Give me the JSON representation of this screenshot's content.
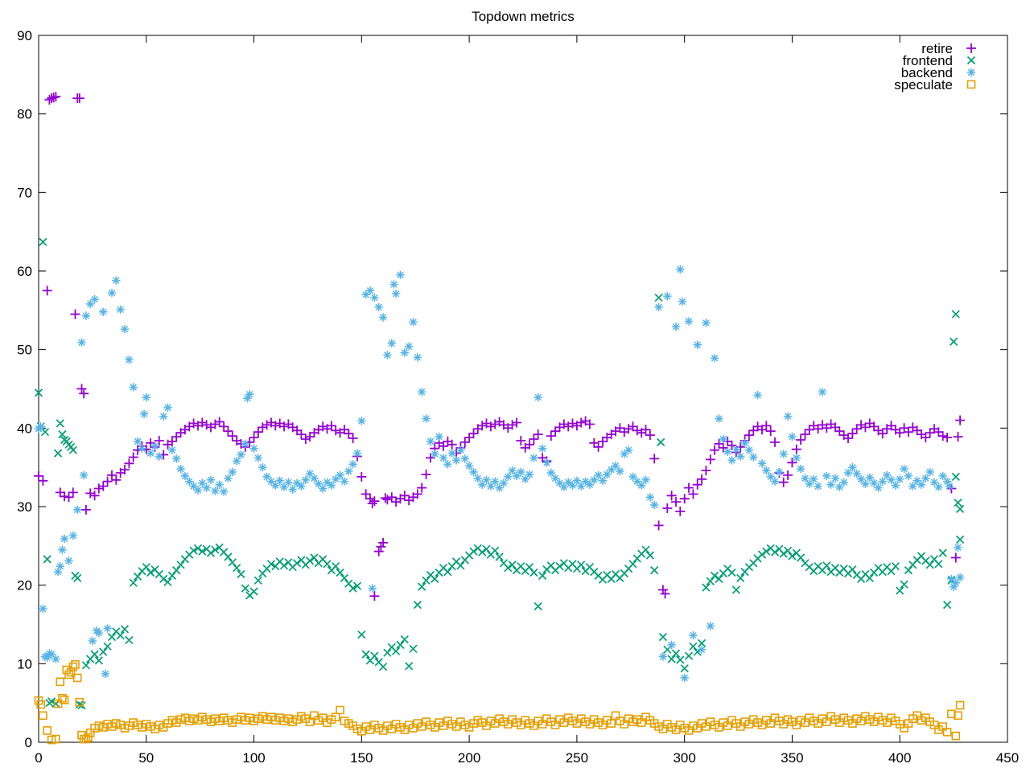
{
  "chart_data": {
    "type": "scatter",
    "title": "Topdown metrics",
    "xlabel": "",
    "ylabel": "",
    "xlim": [
      0,
      450
    ],
    "ylim": [
      0,
      90
    ],
    "xticks": [
      0,
      50,
      100,
      150,
      200,
      250,
      300,
      350,
      400,
      450
    ],
    "yticks": [
      0,
      10,
      20,
      30,
      40,
      50,
      60,
      70,
      80,
      90
    ],
    "grid": false,
    "legend_position": "top-right-inside",
    "background_color": "#ffffff",
    "border_color": "#000000",
    "series": [
      {
        "name": "retire",
        "color": "#9400d3",
        "marker": "plus",
        "x0": 0,
        "dx": 2,
        "y": [
          33.9,
          33.3,
          57.5,
          82.0,
          82.2,
          31.8,
          31.3,
          31.2,
          31.8,
          82.0,
          45.0,
          29.6,
          31.7,
          31.4,
          32.3,
          32.6,
          33.2,
          34.0,
          33.4,
          34.3,
          34.7,
          35.5,
          36.3,
          37.2,
          37.7,
          37.3,
          38.1,
          37.6,
          38.4,
          36.6,
          37.9,
          38.3,
          38.9,
          39.4,
          39.8,
          40.2,
          40.6,
          40.3,
          40.7,
          40.4,
          40.1,
          40.5,
          40.8,
          40.2,
          39.6,
          39.0,
          38.4,
          38.0,
          37.6,
          38.2,
          38.8,
          39.5,
          40.1,
          40.4,
          40.7,
          40.3,
          40.6,
          40.2,
          40.5,
          40.1,
          39.7,
          39.2,
          38.6,
          38.9,
          39.4,
          39.8,
          40.2,
          39.9,
          40.3,
          39.7,
          39.4,
          39.8,
          39.3,
          38.7,
          36.4,
          33.8,
          31.6,
          31.0,
          30.7,
          24.3,
          25.4,
          30.9,
          31.2,
          30.6,
          31.0,
          31.4,
          30.8,
          31.2,
          31.6,
          32.4,
          34.1,
          36.2,
          37.4,
          38.1,
          37.7,
          38.3,
          37.9,
          36.8,
          37.5,
          38.2,
          38.8,
          39.3,
          39.9,
          40.3,
          40.6,
          40.2,
          40.5,
          40.8,
          40.4,
          40.0,
          40.4,
          40.7,
          38.4,
          37.5,
          37.9,
          38.6,
          39.2,
          36.2,
          35.8,
          39.0,
          39.6,
          40.1,
          40.5,
          40.2,
          40.6,
          40.3,
          40.7,
          40.9,
          40.5,
          38.1,
          37.6,
          38.3,
          38.8,
          39.2,
          39.6,
          40.0,
          39.5,
          39.9,
          40.2,
          39.7,
          39.4,
          39.8,
          39.1,
          36.1,
          27.6,
          19.4,
          29.8,
          31.4,
          30.6,
          29.4,
          31.0,
          32.4,
          31.6,
          32.8,
          33.5,
          34.6,
          36.0,
          37.2,
          38.0,
          37.5,
          38.3,
          37.8,
          36.9,
          37.6,
          38.4,
          39.1,
          39.7,
          40.2,
          39.8,
          40.3,
          39.6,
          38.2,
          34.3,
          33.1,
          34.0,
          35.6,
          37.3,
          38.5,
          39.2,
          39.8,
          40.3,
          39.9,
          40.4,
          40.0,
          40.5,
          40.1,
          39.6,
          39.1,
          38.7,
          39.3,
          39.9,
          40.4,
          40.1,
          40.6,
          40.2,
          39.7,
          39.3,
          39.9,
          40.3,
          39.8,
          39.4,
          40.0,
          39.5,
          40.1,
          39.7,
          39.2,
          38.8,
          39.4,
          39.9,
          39.5,
          39.0,
          38.8,
          32.3,
          23.5,
          41.0
        ],
        "extra": [
          [
            5,
            81.8
          ],
          [
            7,
            82.1
          ],
          [
            17,
            54.5
          ],
          [
            19,
            82.0
          ],
          [
            21,
            44.4
          ],
          [
            155,
            30.4
          ],
          [
            156,
            18.6
          ],
          [
            159,
            24.9
          ],
          [
            161,
            31.1
          ],
          [
            291,
            18.9
          ],
          [
            427,
            38.9
          ]
        ]
      },
      {
        "name": "frontend",
        "color": "#009e73",
        "marker": "cross",
        "x0": 0,
        "dx": 2,
        "y": [
          44.5,
          63.7,
          23.3,
          5.2,
          4.9,
          40.6,
          38.5,
          37.9,
          37.2,
          20.9,
          4.7,
          9.8,
          10.6,
          11.2,
          10.4,
          11.5,
          12.2,
          13.4,
          14.1,
          13.6,
          14.4,
          13.0,
          20.3,
          21.1,
          21.8,
          22.3,
          21.6,
          22.0,
          21.4,
          20.8,
          20.4,
          21.2,
          21.9,
          22.6,
          23.3,
          23.9,
          24.4,
          24.7,
          24.3,
          24.6,
          24.1,
          24.5,
          24.8,
          24.2,
          23.6,
          22.9,
          22.2,
          21.4,
          19.6,
          18.7,
          19.2,
          20.6,
          21.5,
          22.1,
          22.7,
          22.4,
          23.0,
          22.5,
          22.9,
          22.3,
          22.8,
          23.2,
          22.6,
          23.1,
          23.5,
          22.8,
          23.3,
          22.7,
          21.9,
          22.4,
          21.6,
          20.9,
          20.2,
          19.6,
          19.9,
          13.7,
          11.2,
          10.4,
          11.0,
          10.2,
          9.6,
          11.4,
          12.1,
          11.6,
          12.4,
          13.1,
          9.7,
          11.9,
          17.5,
          19.8,
          20.6,
          21.3,
          20.8,
          21.6,
          22.2,
          21.7,
          22.4,
          23.0,
          22.5,
          23.2,
          23.8,
          24.3,
          24.7,
          24.2,
          24.6,
          23.9,
          24.4,
          23.6,
          22.8,
          22.2,
          22.6,
          21.9,
          22.4,
          21.8,
          22.3,
          21.6,
          17.3,
          21.2,
          22.0,
          22.5,
          21.9,
          22.4,
          22.8,
          22.2,
          22.7,
          22.1,
          22.6,
          21.8,
          22.3,
          21.7,
          21.2,
          20.7,
          21.3,
          20.8,
          21.4,
          20.9,
          21.5,
          22.1,
          22.7,
          23.4,
          24.0,
          24.5,
          23.8,
          21.9,
          56.6,
          13.4,
          11.8,
          10.6,
          11.3,
          10.5,
          9.4,
          11.0,
          12.2,
          11.5,
          12.6,
          19.7,
          20.5,
          21.2,
          20.8,
          21.5,
          22.1,
          21.6,
          19.4,
          20.9,
          21.7,
          22.3,
          22.8,
          23.4,
          23.9,
          24.3,
          24.7,
          24.2,
          24.6,
          24.0,
          24.4,
          23.7,
          24.1,
          23.5,
          22.8,
          22.3,
          21.8,
          22.4,
          21.9,
          22.5,
          21.7,
          22.2,
          21.6,
          22.1,
          21.5,
          22.0,
          21.3,
          20.8,
          21.4,
          20.9,
          21.6,
          22.2,
          21.7,
          22.3,
          21.8,
          22.4,
          19.3,
          20.1,
          21.9,
          22.6,
          23.2,
          23.7,
          23.1,
          22.6,
          23.3,
          22.7,
          24.1,
          17.5,
          20.6,
          54.5,
          25.8
        ],
        "extra": [
          [
            1,
            40.2
          ],
          [
            3,
            39.5
          ],
          [
            5,
            5.0
          ],
          [
            9,
            36.8
          ],
          [
            11,
            39.2
          ],
          [
            13,
            38.3
          ],
          [
            15,
            37.6
          ],
          [
            17,
            21.2
          ],
          [
            19,
            4.8
          ],
          [
            289,
            38.2
          ],
          [
            425,
            51.0
          ],
          [
            426,
            33.8
          ],
          [
            427,
            30.5
          ],
          [
            428,
            29.7
          ]
        ]
      },
      {
        "name": "backend",
        "color": "#56b4e9",
        "marker": "asterisk",
        "x0": 0,
        "dx": 2,
        "y": [
          39.9,
          17.0,
          10.8,
          11.2,
          10.6,
          22.4,
          25.9,
          23.1,
          26.3,
          29.6,
          50.9,
          54.3,
          55.8,
          56.4,
          13.9,
          54.8,
          14.5,
          57.2,
          58.8,
          55.1,
          52.6,
          48.7,
          45.2,
          38.3,
          37.4,
          43.9,
          36.8,
          37.7,
          36.4,
          41.5,
          42.6,
          37.2,
          36.1,
          34.8,
          33.9,
          33.2,
          32.6,
          32.1,
          33.0,
          32.4,
          33.4,
          32.0,
          32.8,
          31.9,
          33.6,
          34.4,
          35.8,
          36.6,
          38.0,
          44.3,
          37.4,
          36.2,
          35.0,
          33.8,
          33.2,
          32.7,
          33.3,
          32.5,
          33.1,
          32.2,
          33.0,
          32.6,
          33.4,
          34.2,
          33.6,
          32.9,
          32.3,
          33.1,
          32.7,
          33.5,
          34.0,
          33.2,
          34.5,
          35.4,
          36.8,
          40.9,
          57.0,
          57.5,
          56.6,
          55.4,
          54.1,
          49.3,
          50.8,
          57.1,
          59.5,
          49.6,
          50.4,
          53.5,
          49.0,
          44.6,
          41.2,
          38.3,
          36.7,
          38.9,
          36.2,
          35.4,
          36.8,
          35.9,
          37.2,
          36.1,
          35.2,
          34.4,
          33.6,
          32.8,
          33.4,
          32.6,
          33.2,
          32.4,
          33.0,
          33.8,
          34.6,
          33.9,
          34.4,
          33.5,
          34.1,
          36.2,
          43.9,
          37.4,
          35.6,
          34.3,
          33.6,
          33.0,
          32.5,
          33.1,
          32.7,
          33.3,
          32.6,
          33.2,
          32.8,
          33.4,
          34.0,
          33.3,
          34.1,
          34.7,
          35.2,
          34.5,
          36.7,
          37.2,
          33.8,
          33.2,
          32.7,
          33.4,
          31.2,
          30.2,
          55.4,
          10.9,
          56.8,
          12.4,
          52.9,
          60.2,
          8.2,
          53.6,
          13.6,
          50.6,
          11.8,
          53.4,
          14.8,
          48.9,
          41.2,
          38.6,
          37.0,
          35.9,
          37.3,
          36.4,
          38.1,
          37.2,
          36.3,
          44.2,
          35.5,
          34.6,
          33.8,
          33.2,
          34.4,
          36.7,
          41.5,
          38.9,
          36.2,
          34.8,
          33.6,
          32.9,
          33.5,
          32.6,
          44.6,
          33.9,
          32.8,
          33.6,
          32.5,
          33.1,
          34.3,
          35.0,
          34.2,
          33.5,
          32.9,
          33.7,
          33.0,
          32.4,
          33.2,
          34.0,
          33.4,
          32.7,
          33.5,
          34.8,
          33.9,
          32.6,
          33.3,
          32.8,
          33.6,
          34.4,
          33.1,
          32.5,
          33.9,
          33.2,
          20.8,
          20.3,
          21.0
        ],
        "extra": [
          [
            1,
            40.2
          ],
          [
            3,
            10.9
          ],
          [
            5,
            11.3
          ],
          [
            9,
            21.7
          ],
          [
            11,
            24.5
          ],
          [
            21,
            34.0
          ],
          [
            25,
            12.9
          ],
          [
            27,
            14.2
          ],
          [
            31,
            8.7
          ],
          [
            49,
            41.8
          ],
          [
            97,
            43.8
          ],
          [
            155,
            19.6
          ],
          [
            165,
            58.3
          ],
          [
            299,
            56.1
          ],
          [
            423,
            32.6
          ],
          [
            425,
            19.8
          ],
          [
            427,
            24.8
          ]
        ]
      },
      {
        "name": "speculate",
        "color": "#e69f00",
        "marker": "square",
        "x0": 0,
        "dx": 2,
        "y": [
          5.3,
          3.4,
          1.5,
          0.3,
          0.4,
          7.7,
          5.4,
          8.6,
          9.6,
          8.2,
          0.9,
          0.4,
          1.2,
          1.8,
          2.1,
          1.9,
          2.3,
          2.0,
          2.4,
          2.2,
          1.8,
          2.1,
          2.5,
          2.2,
          1.9,
          2.3,
          2.0,
          1.7,
          2.2,
          1.9,
          2.4,
          2.8,
          2.5,
          2.9,
          3.1,
          2.7,
          3.0,
          2.8,
          3.2,
          2.9,
          2.6,
          3.0,
          2.7,
          3.1,
          2.8,
          2.5,
          2.9,
          3.2,
          2.8,
          3.1,
          2.7,
          3.0,
          3.3,
          2.9,
          3.2,
          2.8,
          3.1,
          2.7,
          3.0,
          2.6,
          2.9,
          3.3,
          3.0,
          2.6,
          3.4,
          2.8,
          3.1,
          2.5,
          2.9,
          3.2,
          4.1,
          2.7,
          2.4,
          2.1,
          1.7,
          1.4,
          2.0,
          1.6,
          2.2,
          1.8,
          1.5,
          2.1,
          1.7,
          2.3,
          1.9,
          1.6,
          2.2,
          1.8,
          2.4,
          2.0,
          2.6,
          2.2,
          1.9,
          2.5,
          2.1,
          2.7,
          2.3,
          2.0,
          2.6,
          2.2,
          1.9,
          2.4,
          2.8,
          2.5,
          2.1,
          2.7,
          2.4,
          3.0,
          2.6,
          2.3,
          2.9,
          2.5,
          2.2,
          2.8,
          2.4,
          2.1,
          2.7,
          2.3,
          3.0,
          2.6,
          2.2,
          2.9,
          2.5,
          3.1,
          2.7,
          2.4,
          3.0,
          2.6,
          2.3,
          2.9,
          2.5,
          2.2,
          2.8,
          2.4,
          3.4,
          2.7,
          2.3,
          3.0,
          2.6,
          2.9,
          2.5,
          3.2,
          2.8,
          2.4,
          2.0,
          1.7,
          2.3,
          1.9,
          1.6,
          2.2,
          1.8,
          1.5,
          2.1,
          1.8,
          2.4,
          2.0,
          2.6,
          2.2,
          1.9,
          2.5,
          2.1,
          2.8,
          2.4,
          2.0,
          2.6,
          2.3,
          2.9,
          2.5,
          2.2,
          2.8,
          2.4,
          3.1,
          2.7,
          2.3,
          2.9,
          2.6,
          2.2,
          2.8,
          2.5,
          3.1,
          2.7,
          2.4,
          3.0,
          2.6,
          3.3,
          2.9,
          2.5,
          3.1,
          2.8,
          2.4,
          3.0,
          2.7,
          3.3,
          2.9,
          2.6,
          3.2,
          2.8,
          2.5,
          3.1,
          2.7,
          2.3,
          1.8,
          2.4,
          3.0,
          3.4,
          2.8,
          3.1,
          2.6,
          2.2,
          1.6,
          2.0,
          1.3,
          3.6,
          0.8,
          4.7
        ],
        "extra": [
          [
            1,
            4.8
          ],
          [
            9,
            4.9
          ],
          [
            11,
            5.6
          ],
          [
            13,
            9.2
          ],
          [
            15,
            8.9
          ],
          [
            17,
            9.9
          ],
          [
            19,
            5.1
          ],
          [
            21,
            0.4
          ],
          [
            23,
            0.6
          ],
          [
            427,
            3.4
          ]
        ]
      }
    ]
  }
}
